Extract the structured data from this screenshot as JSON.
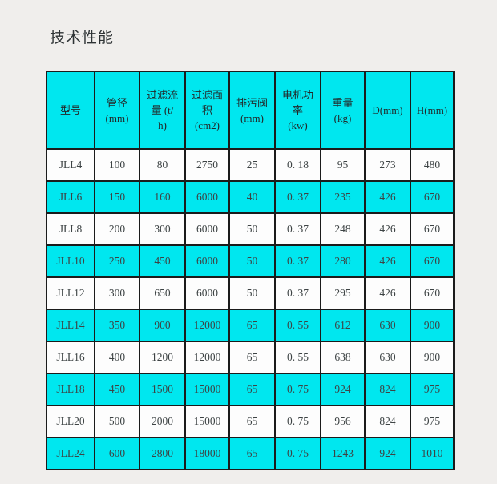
{
  "page": {
    "title": "技术性能"
  },
  "colors": {
    "accent_cyan": "#00e7ef",
    "border": "#1b1b1b",
    "page_bg": "#f0eeec",
    "text": "#3b4142"
  },
  "table": {
    "columns": [
      {
        "id": "model",
        "label": "型号"
      },
      {
        "id": "pipe-diameter",
        "label": "管径\n(mm)"
      },
      {
        "id": "filter-flow",
        "label": "过滤流\n量 (t/\nh)"
      },
      {
        "id": "filter-area",
        "label": "过滤面\n积\n(cm2)"
      },
      {
        "id": "drain-valve",
        "label": "排污阀\n(mm)"
      },
      {
        "id": "motor-power",
        "label": "电机功\n率\n(kw)"
      },
      {
        "id": "weight",
        "label": "重量\n(kg)"
      },
      {
        "id": "d-dim",
        "label": "D(mm)"
      },
      {
        "id": "h-dim",
        "label": "H(mm)"
      }
    ],
    "rows": [
      {
        "highlight": false,
        "cells": [
          "JLL4",
          "100",
          "80",
          "2750",
          "25",
          "0. 18",
          "95",
          "273",
          "480"
        ]
      },
      {
        "highlight": true,
        "cells": [
          "JLL6",
          "150",
          "160",
          "6000",
          "40",
          "0. 37",
          "235",
          "426",
          "670"
        ]
      },
      {
        "highlight": false,
        "cells": [
          "JLL8",
          "200",
          "300",
          "6000",
          "50",
          "0. 37",
          "248",
          "426",
          "670"
        ]
      },
      {
        "highlight": true,
        "cells": [
          "JLL10",
          "250",
          "450",
          "6000",
          "50",
          "0. 37",
          "280",
          "426",
          "670"
        ]
      },
      {
        "highlight": false,
        "cells": [
          "JLL12",
          "300",
          "650",
          "6000",
          "50",
          "0. 37",
          "295",
          "426",
          "670"
        ]
      },
      {
        "highlight": true,
        "cells": [
          "JLL14",
          "350",
          "900",
          "12000",
          "65",
          "0. 55",
          "612",
          "630",
          "900"
        ]
      },
      {
        "highlight": false,
        "cells": [
          "JLL16",
          "400",
          "1200",
          "12000",
          "65",
          "0. 55",
          "638",
          "630",
          "900"
        ]
      },
      {
        "highlight": true,
        "cells": [
          "JLL18",
          "450",
          "1500",
          "15000",
          "65",
          "0. 75",
          "924",
          "824",
          "975"
        ]
      },
      {
        "highlight": false,
        "cells": [
          "JLL20",
          "500",
          "2000",
          "15000",
          "65",
          "0. 75",
          "956",
          "824",
          "975"
        ]
      },
      {
        "highlight": true,
        "cells": [
          "JLL24",
          "600",
          "2800",
          "18000",
          "65",
          "0. 75",
          "1243",
          "924",
          "1010"
        ]
      }
    ]
  }
}
